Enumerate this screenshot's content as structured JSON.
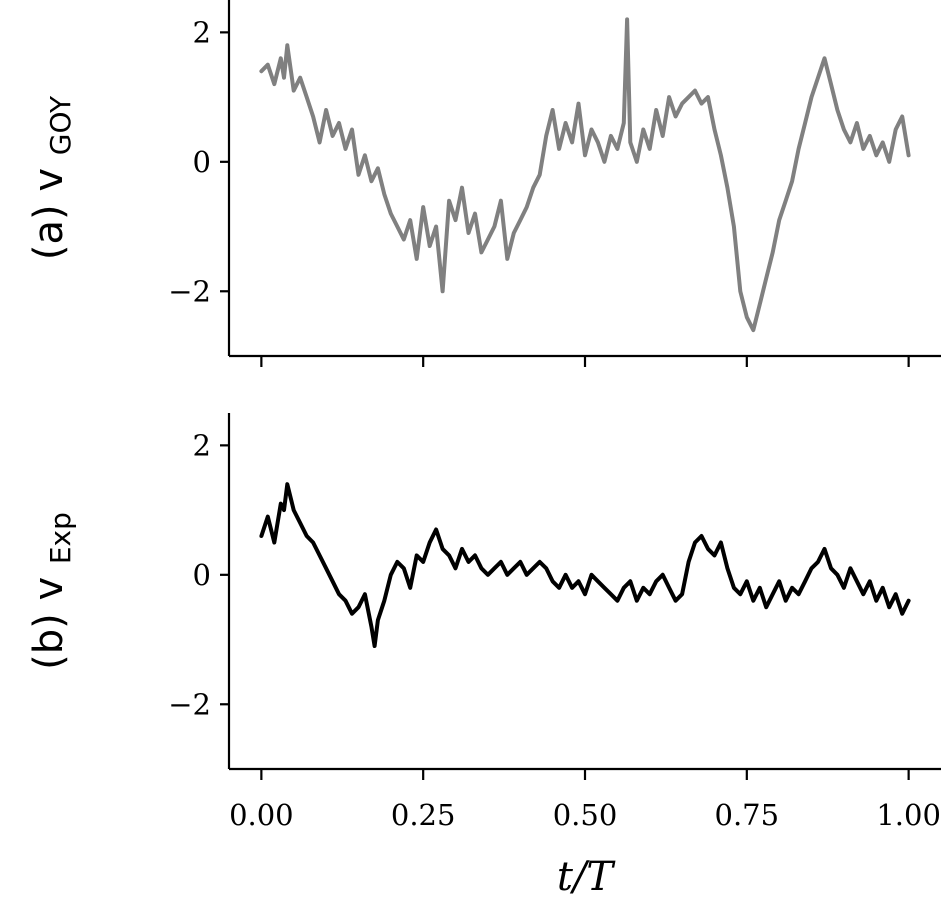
{
  "chart_data": [
    {
      "type": "line",
      "panel": "(a)",
      "ylabel": "(a)",
      "ylabel_symbol": "v",
      "ylabel_subscript": "GOY",
      "xlim": [
        -0.05,
        1.05
      ],
      "ylim": [
        -3.0,
        2.5
      ],
      "yticks": [
        -2,
        0,
        2
      ],
      "ytick_labels": [
        "−2",
        "0",
        "2"
      ],
      "xticks": [
        0.0,
        0.25,
        0.5,
        0.75,
        1.0
      ],
      "xtick_labels": [],
      "color": "#808080",
      "series": [
        {
          "x": [
            0.0,
            0.01,
            0.02,
            0.03,
            0.035,
            0.04,
            0.05,
            0.06,
            0.07,
            0.08,
            0.09,
            0.1,
            0.11,
            0.12,
            0.13,
            0.14,
            0.15,
            0.16,
            0.17,
            0.18,
            0.19,
            0.2,
            0.21,
            0.22,
            0.23,
            0.24,
            0.25,
            0.26,
            0.27,
            0.28,
            0.29,
            0.3,
            0.31,
            0.32,
            0.33,
            0.34,
            0.35,
            0.36,
            0.37,
            0.38,
            0.39,
            0.4,
            0.41,
            0.42,
            0.43,
            0.44,
            0.45,
            0.46,
            0.47,
            0.48,
            0.49,
            0.5,
            0.51,
            0.52,
            0.53,
            0.54,
            0.55,
            0.56,
            0.565,
            0.57,
            0.58,
            0.59,
            0.6,
            0.61,
            0.62,
            0.63,
            0.64,
            0.65,
            0.66,
            0.67,
            0.68,
            0.69,
            0.7,
            0.71,
            0.72,
            0.73,
            0.74,
            0.75,
            0.76,
            0.77,
            0.78,
            0.79,
            0.8,
            0.81,
            0.82,
            0.83,
            0.84,
            0.85,
            0.86,
            0.87,
            0.88,
            0.89,
            0.9,
            0.91,
            0.92,
            0.93,
            0.94,
            0.95,
            0.96,
            0.97,
            0.98,
            0.99,
            1.0
          ],
          "y": [
            1.4,
            1.5,
            1.2,
            1.6,
            1.3,
            1.8,
            1.1,
            1.3,
            1.0,
            0.7,
            0.3,
            0.8,
            0.4,
            0.6,
            0.2,
            0.5,
            -0.2,
            0.1,
            -0.3,
            -0.1,
            -0.5,
            -0.8,
            -1.0,
            -1.2,
            -0.9,
            -1.5,
            -0.7,
            -1.3,
            -1.0,
            -2.0,
            -0.6,
            -0.9,
            -0.4,
            -1.1,
            -0.8,
            -1.4,
            -1.2,
            -1.0,
            -0.6,
            -1.5,
            -1.1,
            -0.9,
            -0.7,
            -0.4,
            -0.2,
            0.4,
            0.8,
            0.2,
            0.6,
            0.3,
            0.9,
            0.1,
            0.5,
            0.3,
            0.0,
            0.4,
            0.2,
            0.6,
            2.2,
            0.3,
            0.0,
            0.5,
            0.2,
            0.8,
            0.4,
            1.0,
            0.7,
            0.9,
            1.0,
            1.1,
            0.9,
            1.0,
            0.5,
            0.1,
            -0.4,
            -1.0,
            -2.0,
            -2.4,
            -2.6,
            -2.2,
            -1.8,
            -1.4,
            -0.9,
            -0.6,
            -0.3,
            0.2,
            0.6,
            1.0,
            1.3,
            1.6,
            1.2,
            0.8,
            0.5,
            0.3,
            0.6,
            0.2,
            0.4,
            0.1,
            0.3,
            0.0,
            0.5,
            0.7,
            0.1
          ]
        }
      ]
    },
    {
      "type": "line",
      "panel": "(b)",
      "ylabel": "(b)",
      "ylabel_symbol": "v",
      "ylabel_subscript": "Exp",
      "xlabel": "t/T",
      "xlim": [
        -0.05,
        1.05
      ],
      "ylim": [
        -3.0,
        2.5
      ],
      "yticks": [
        -2,
        0,
        2
      ],
      "ytick_labels": [
        "−2",
        "0",
        "2"
      ],
      "xticks": [
        0.0,
        0.25,
        0.5,
        0.75,
        1.0
      ],
      "xtick_labels": [
        "0.00",
        "0.25",
        "0.50",
        "0.75",
        "1.00"
      ],
      "color": "#000000",
      "series": [
        {
          "x": [
            0.0,
            0.01,
            0.02,
            0.03,
            0.035,
            0.04,
            0.05,
            0.06,
            0.07,
            0.08,
            0.09,
            0.1,
            0.11,
            0.12,
            0.13,
            0.14,
            0.15,
            0.16,
            0.17,
            0.175,
            0.18,
            0.19,
            0.2,
            0.21,
            0.22,
            0.23,
            0.24,
            0.25,
            0.26,
            0.27,
            0.28,
            0.29,
            0.3,
            0.31,
            0.32,
            0.33,
            0.34,
            0.35,
            0.36,
            0.37,
            0.38,
            0.39,
            0.4,
            0.41,
            0.42,
            0.43,
            0.44,
            0.45,
            0.46,
            0.47,
            0.48,
            0.49,
            0.5,
            0.51,
            0.52,
            0.53,
            0.54,
            0.55,
            0.56,
            0.57,
            0.58,
            0.59,
            0.6,
            0.61,
            0.62,
            0.63,
            0.64,
            0.65,
            0.66,
            0.67,
            0.68,
            0.69,
            0.7,
            0.71,
            0.72,
            0.73,
            0.74,
            0.75,
            0.76,
            0.77,
            0.78,
            0.79,
            0.8,
            0.81,
            0.82,
            0.83,
            0.84,
            0.85,
            0.86,
            0.87,
            0.88,
            0.89,
            0.9,
            0.91,
            0.92,
            0.93,
            0.94,
            0.95,
            0.96,
            0.97,
            0.98,
            0.99,
            1.0
          ],
          "y": [
            0.6,
            0.9,
            0.5,
            1.1,
            1.0,
            1.4,
            1.0,
            0.8,
            0.6,
            0.5,
            0.3,
            0.1,
            -0.1,
            -0.3,
            -0.4,
            -0.6,
            -0.5,
            -0.3,
            -0.8,
            -1.1,
            -0.7,
            -0.4,
            0.0,
            0.2,
            0.1,
            -0.2,
            0.3,
            0.2,
            0.5,
            0.7,
            0.4,
            0.3,
            0.1,
            0.4,
            0.2,
            0.3,
            0.1,
            0.0,
            0.1,
            0.2,
            0.0,
            0.1,
            0.2,
            0.0,
            0.1,
            0.2,
            0.1,
            -0.1,
            -0.2,
            0.0,
            -0.2,
            -0.1,
            -0.3,
            0.0,
            -0.1,
            -0.2,
            -0.3,
            -0.4,
            -0.2,
            -0.1,
            -0.4,
            -0.2,
            -0.3,
            -0.1,
            0.0,
            -0.2,
            -0.4,
            -0.3,
            0.2,
            0.5,
            0.6,
            0.4,
            0.3,
            0.5,
            0.1,
            -0.2,
            -0.3,
            -0.1,
            -0.4,
            -0.2,
            -0.5,
            -0.3,
            -0.1,
            -0.4,
            -0.2,
            -0.3,
            -0.1,
            0.1,
            0.2,
            0.4,
            0.1,
            0.0,
            -0.2,
            0.1,
            -0.1,
            -0.3,
            -0.1,
            -0.4,
            -0.2,
            -0.5,
            -0.3,
            -0.6,
            -0.4
          ]
        }
      ]
    }
  ]
}
